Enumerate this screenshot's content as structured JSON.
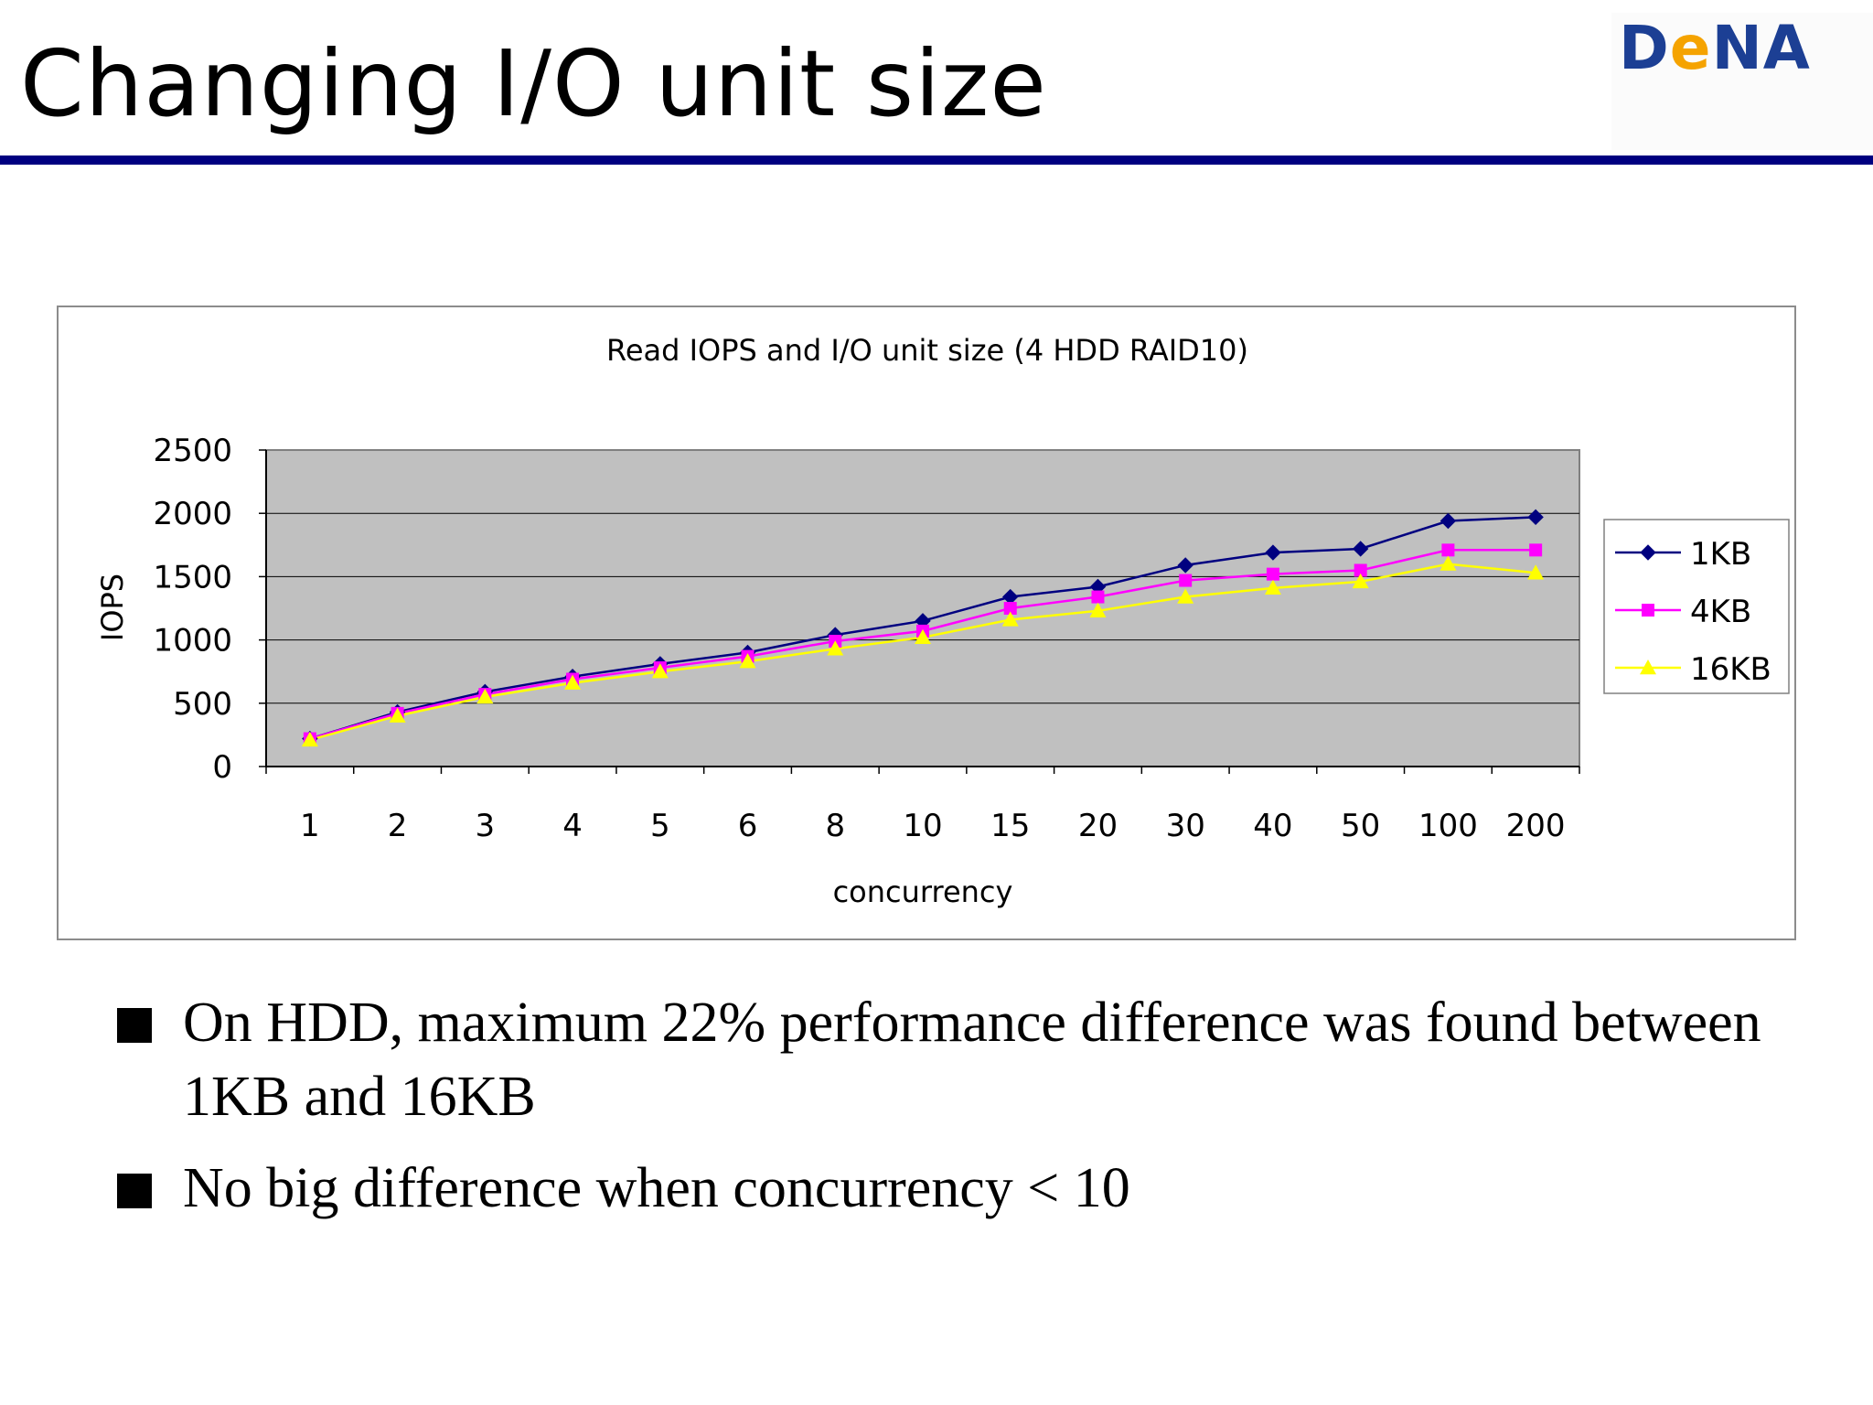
{
  "slide": {
    "title": "Changing I/O unit size",
    "logo_text_1": "D",
    "logo_text_2": "e",
    "logo_text_3": "NA",
    "bullets": [
      {
        "text": "On HDD, maximum 22% performance difference was found between 1KB and 16KB"
      },
      {
        "text": "No big difference when concurrency < 10"
      }
    ]
  },
  "colors": {
    "rule": "#000080",
    "plot_bg": "#c0c0c0",
    "logo_blue": "#1c3f94",
    "logo_orange": "#f5a300"
  },
  "chart_data": {
    "type": "line",
    "title": "Read IOPS and I/O unit size (4 HDD RAID10)",
    "xlabel": "concurrency",
    "ylabel": "IOPS",
    "categories": [
      "1",
      "2",
      "3",
      "4",
      "5",
      "6",
      "8",
      "10",
      "15",
      "20",
      "30",
      "40",
      "50",
      "100",
      "200"
    ],
    "ylim": [
      0,
      2500
    ],
    "yticks": [
      0,
      500,
      1000,
      1500,
      2000,
      2500
    ],
    "grid": true,
    "legend_position": "right",
    "series": [
      {
        "name": "1KB",
        "color": "#000080",
        "marker": "diamond",
        "values": [
          220,
          430,
          590,
          710,
          810,
          900,
          1040,
          1150,
          1340,
          1420,
          1590,
          1690,
          1720,
          1940,
          1970
        ]
      },
      {
        "name": "4KB",
        "color": "#ff00ff",
        "marker": "square",
        "values": [
          220,
          420,
          570,
          690,
          780,
          870,
          990,
          1070,
          1250,
          1340,
          1470,
          1520,
          1550,
          1710,
          1710
        ]
      },
      {
        "name": "16KB",
        "color": "#ffff00",
        "marker": "triangle",
        "values": [
          210,
          400,
          550,
          660,
          750,
          830,
          930,
          1020,
          1160,
          1230,
          1340,
          1410,
          1460,
          1600,
          1530
        ]
      }
    ]
  }
}
